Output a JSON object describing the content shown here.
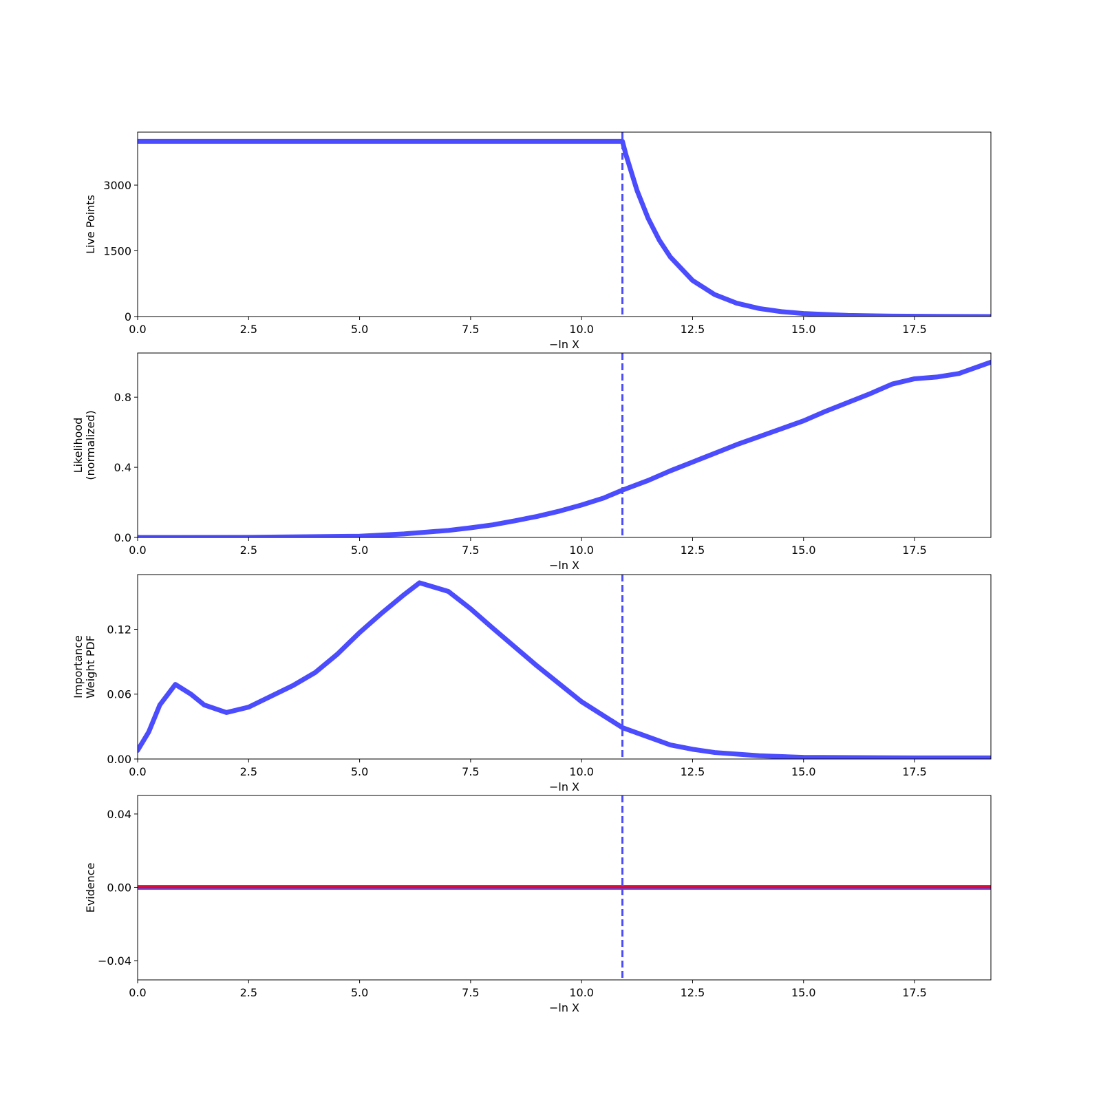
{
  "chart_data": [
    {
      "type": "line",
      "ylabel": [
        "Live Points"
      ],
      "xlabel": "−ln X",
      "color": "#4c4cff",
      "vline": 10.92,
      "x": [
        0,
        10.92,
        11.0,
        11.25,
        11.5,
        11.75,
        12,
        12.5,
        13,
        13.5,
        14,
        14.5,
        15,
        16,
        17,
        18,
        19.22
      ],
      "values": [
        4000,
        4000,
        3692,
        2876,
        2240,
        1745,
        1359,
        824,
        500,
        303,
        184,
        112,
        68,
        25,
        9,
        3,
        1
      ],
      "xlim": [
        0,
        19.22
      ],
      "ylim": [
        0,
        4210
      ],
      "xticks": [
        {
          "value": 0,
          "label": "0.0"
        },
        2.5,
        {
          "value": 5,
          "label": "5.0"
        },
        7.5,
        {
          "value": 10,
          "label": "10.0"
        },
        12.5,
        {
          "value": 15,
          "label": "15.0"
        },
        17.5
      ],
      "yticks": [
        0,
        1500,
        3000
      ]
    },
    {
      "type": "line",
      "ylabel": [
        "Likelihood",
        "(normalized)"
      ],
      "xlabel": "−ln X",
      "color": "#4c4cff",
      "vline": 10.92,
      "x": [
        0,
        2.5,
        5,
        6,
        7,
        7.5,
        8,
        8.5,
        9,
        9.5,
        10,
        10.5,
        10.92,
        11.5,
        12,
        12.5,
        13,
        13.5,
        14,
        14.5,
        15,
        15.5,
        16,
        16.5,
        17,
        17.5,
        18,
        18.5,
        19.22
      ],
      "values": [
        0,
        0.0005,
        0.007,
        0.02,
        0.04,
        0.055,
        0.072,
        0.095,
        0.12,
        0.15,
        0.185,
        0.225,
        0.27,
        0.325,
        0.38,
        0.43,
        0.48,
        0.53,
        0.575,
        0.62,
        0.665,
        0.72,
        0.77,
        0.82,
        0.875,
        0.905,
        0.915,
        0.935,
        1.0
      ],
      "xlim": [
        0,
        19.22
      ],
      "ylim": [
        0,
        1.052
      ],
      "xticks": [
        {
          "value": 0,
          "label": "0.0"
        },
        2.5,
        {
          "value": 5,
          "label": "5.0"
        },
        7.5,
        {
          "value": 10,
          "label": "10.0"
        },
        12.5,
        {
          "value": 15,
          "label": "15.0"
        },
        17.5
      ],
      "yticks": [
        {
          "value": 0,
          "label": "0.0"
        },
        0.4,
        0.8
      ]
    },
    {
      "type": "line",
      "ylabel": [
        "Importance",
        "Weight PDF"
      ],
      "xlabel": "−ln X",
      "color": "#4c4cff",
      "vline": 10.92,
      "x": [
        0,
        0.25,
        0.5,
        0.85,
        1.2,
        1.5,
        2,
        2.5,
        3,
        3.5,
        4,
        4.5,
        5,
        5.5,
        6,
        6.35,
        7,
        7.5,
        8,
        9,
        10,
        10.92,
        12,
        12.5,
        13,
        14,
        15,
        17.5,
        19.22
      ],
      "values": [
        0.008,
        0.025,
        0.05,
        0.069,
        0.06,
        0.05,
        0.043,
        0.048,
        0.058,
        0.068,
        0.08,
        0.097,
        0.117,
        0.135,
        0.152,
        0.163,
        0.155,
        0.139,
        0.121,
        0.086,
        0.053,
        0.029,
        0.013,
        0.009,
        0.006,
        0.003,
        0.0015,
        0.001,
        0.001
      ],
      "xlim": [
        0,
        19.22
      ],
      "ylim": [
        0,
        0.1706
      ],
      "xticks": [
        {
          "value": 0,
          "label": "0.0"
        },
        2.5,
        {
          "value": 5,
          "label": "5.0"
        },
        7.5,
        {
          "value": 10,
          "label": "10.0"
        },
        12.5,
        {
          "value": 15,
          "label": "15.0"
        },
        17.5
      ],
      "yticks": [
        {
          "value": 0,
          "label": "0.00"
        },
        {
          "value": 0.06,
          "label": "0.06"
        },
        {
          "value": 0.12,
          "label": "0.12"
        }
      ]
    },
    {
      "type": "line",
      "ylabel": [
        "Evidence"
      ],
      "xlabel": "−ln X",
      "color": "#4c4cff",
      "vline": 10.92,
      "x": [
        0,
        19.22
      ],
      "values": [
        0,
        0
      ],
      "reference_line": {
        "value": 0,
        "color": "#ff0000"
      },
      "xlim": [
        0,
        19.22
      ],
      "ylim": [
        -0.0505,
        0.0501
      ],
      "xticks": [
        {
          "value": 0,
          "label": "0.0"
        },
        2.5,
        {
          "value": 5,
          "label": "5.0"
        },
        7.5,
        {
          "value": 10,
          "label": "10.0"
        },
        12.5,
        {
          "value": 15,
          "label": "15.0"
        },
        17.5
      ],
      "yticks": [
        {
          "value": -0.04,
          "label": "−0.04"
        },
        {
          "value": 0,
          "label": "0.00"
        },
        {
          "value": 0.04,
          "label": "0.04"
        }
      ]
    }
  ]
}
